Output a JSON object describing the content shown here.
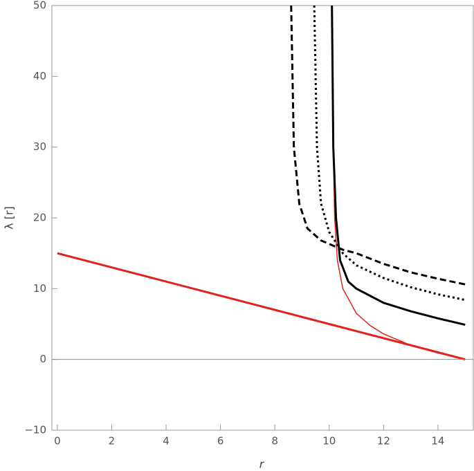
{
  "chart_data": {
    "type": "line",
    "xlabel": "r",
    "ylabel": "λ [r]",
    "xlim": [
      -0.2,
      15.3
    ],
    "ylim": [
      -10,
      50
    ],
    "xticks": [
      0,
      2,
      4,
      6,
      8,
      10,
      12,
      14
    ],
    "yticks": [
      {
        "value": -10,
        "label": "−10"
      },
      0,
      10,
      20,
      30,
      40,
      50
    ],
    "series": [
      {
        "color": "#e3201b",
        "dash": "solid",
        "weight": "thick",
        "x": [
          0,
          15
        ],
        "values": [
          15,
          0
        ]
      },
      {
        "color": "#e3201b",
        "dash": "solid",
        "weight": "thin",
        "x": [
          10.1,
          10.15,
          10.2,
          10.3,
          10.5,
          11,
          11.5,
          12,
          13,
          14,
          15
        ],
        "values": [
          50,
          30,
          20,
          14,
          10,
          6.5,
          4.8,
          3.6,
          2,
          0.9,
          0
        ]
      },
      {
        "color": "#000000",
        "dash": "solid",
        "weight": "thick",
        "x": [
          10.1,
          10.15,
          10.25,
          10.4,
          10.7,
          11,
          12,
          13,
          14,
          15
        ],
        "values": [
          50,
          30,
          20,
          14,
          11,
          10,
          8,
          6.8,
          5.8,
          4.9
        ]
      },
      {
        "color": "#000000",
        "dash": "dotted",
        "weight": "thick",
        "x": [
          9.45,
          9.55,
          9.7,
          10,
          10.5,
          11,
          12,
          13,
          14,
          15
        ],
        "values": [
          50,
          30,
          22,
          18,
          15,
          13.3,
          11.5,
          10.2,
          9.2,
          8.4
        ]
      },
      {
        "color": "#000000",
        "dash": "dashed",
        "weight": "thick",
        "x": [
          8.6,
          8.7,
          8.9,
          9.2,
          9.7,
          10.5,
          11,
          12,
          13,
          14,
          15
        ],
        "values": [
          50,
          30,
          22,
          18.5,
          16.8,
          15.5,
          15,
          13.5,
          12.3,
          11.4,
          10.6
        ]
      }
    ]
  }
}
